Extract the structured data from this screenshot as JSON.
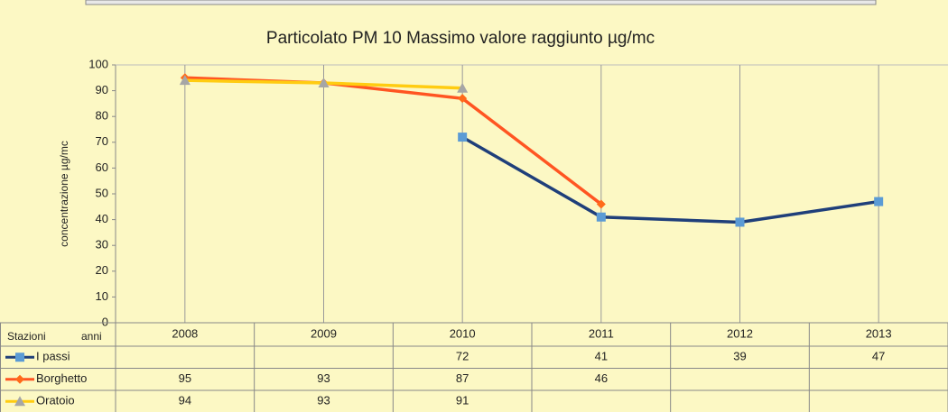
{
  "chart_data": {
    "type": "line",
    "title": "Particolato PM 10 Massimo valore raggiunto µg/mc",
    "y_label": "concentrazione µg/mc",
    "table_corner": [
      "Stazioni",
      "anni"
    ],
    "categories": [
      "2008",
      "2009",
      "2010",
      "2011",
      "2012",
      "2013"
    ],
    "series": [
      {
        "name": "I passi",
        "color": "#1f3f7a",
        "marker_color": "#5b9bd5",
        "marker": "square",
        "values": [
          null,
          null,
          72,
          41,
          39,
          47
        ]
      },
      {
        "name": "Borghetto",
        "color": "#ff5522",
        "marker_color": "#ff6a1a",
        "marker": "diamond",
        "values": [
          95,
          93,
          87,
          46,
          null,
          null
        ]
      },
      {
        "name": "Oratoio",
        "color": "#ffcc11",
        "marker_color": "#a6a6a6",
        "marker": "triangle",
        "values": [
          94,
          93,
          91,
          null,
          null,
          null
        ]
      }
    ],
    "ylim": [
      0,
      100
    ],
    "yticks": [
      0,
      10,
      20,
      30,
      40,
      50,
      60,
      70,
      80,
      90,
      100
    ],
    "grid": true
  }
}
